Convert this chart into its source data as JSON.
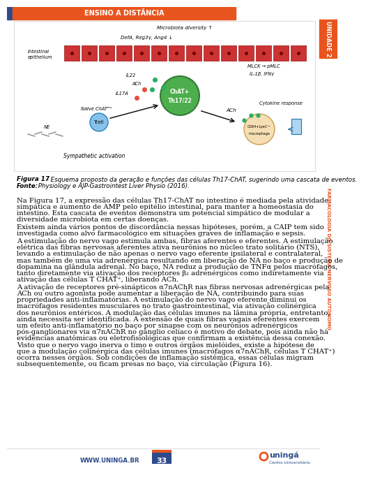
{
  "header_text": "ENSINO A DISTÂNCIA",
  "header_bg": "#E8541E",
  "header_left_bar": "#2E4A8B",
  "sidebar_text": "FARMACOLOGIA DO SISTEMA NERVOSO AUTÔNOMO",
  "sidebar_unit": "UNIDADE 2",
  "sidebar_color": "#E8541E",
  "sidebar_bg": "#ffffff",
  "footer_website": "WWW.UNINGA.BR",
  "footer_page": "33",
  "footer_page_bg": "#2E4A8B",
  "footer_page_color": "#ffffff",
  "fig_caption_bold": "Figura 17",
  "fig_caption_text": " - Esquema proposto da geração e funções das células Th17-ChAT, sugerindo uma cascata de eventos. ",
  "fig_caption_fonte_bold": "Fonte:",
  "fig_caption_fonte_text": " Physiology e AJP-Gastrointest Liver Physio (2016).",
  "body_paragraphs": [
    "    Na Figura 17, a expressão das células Th17-ChAT no intestino é mediada pela atividade simpática e aumento de AMP pelo epitélio intestinal, para manter a homeostasia do intestino. Esta cascata de eventos demonstra um potencial simpático de modular a diversidade microbiota em certas doenças.",
    "    Existem ainda vários pontos de discordância nessas hipóteses, porém, a CAIP tem sido investigada como alvo farmacológico em situações graves de inflamação e sepsis.",
    "    A estimulação do nervo vago estimula ambas, fibras aferentes e eferentes. A estimulação elétrica das fibras nervosas aferentes ativa neurônios no núcleo trato solitário (NTS), levando a estimulação de não apenas o nervo vago eferente ipsilateral e contralateral, mas também de uma via adrenérgica resultando em liberação de NA no baço e produção de dopamina na glândula adrenal. No baço, NA reduz a produção de TNFα pelos macrófagos, tanto diretamente via ativação dos receptores β₂ adrenérgicos como indiretamente via ativação das células T CHAT⁺, liberando ACh.",
    "    A ativação de receptores pré-sinápticos α7nAChR nas fibras nervosas adrenérgicas pela ACh ou outro agonista pode aumentar a liberação de NA, contribuindo para suas propriedades anti-inflamatórias. A estimulação do nervo vago eferente diminui os macrófagos residentes musculares no trato gastrointestinal, via ativação colinérgica dos neurônios entéricos. A modulação das células imunes na lâmina própria, entretanto, ainda necessita ser identificada. A extensão de quais fibras vagais eferentes exercem um efeito anti-inflamatório no baço por sinapse com os neurônios adrenérgicos pós-ganglionares via α7nAChR no gânglio celíaco é motivo de debate, pois ainda não há evidências anatômicas ou eletrofisiológicas que confirmam a existência dessa conexão. Visto que o nervo vago inerva o timo e outros órgãos mielóides, existe a hipótese de que a modulação colinérgica das células imunes (macrófagos α7nAChR, células T CHAT⁺) ocorra nesses órgãos. Sob condições de inflamação sistêmica, essas células migram subsequentemente, ou ficam presas no baço, via circulação (Figura 16)."
  ],
  "bg_color": "#ffffff",
  "text_color": "#000000",
  "body_fontsize": 7.2
}
